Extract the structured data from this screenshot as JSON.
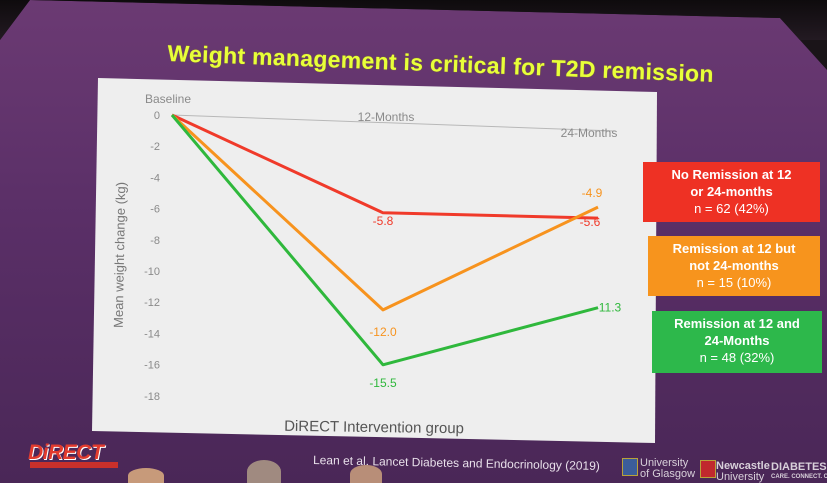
{
  "slide": {
    "title": "Weight management is critical  for T2D remission",
    "citation": "Lean et al. Lancet Diabetes and Endocrinology (2019)",
    "logos": {
      "direct": "DiRECT",
      "glasgow": [
        "University",
        "of Glasgow"
      ],
      "newcastle": [
        "Newcastle",
        "University"
      ],
      "diabetes": [
        "DIABETES",
        "CARE. CONNECT. CA"
      ]
    }
  },
  "chart_data": {
    "type": "line",
    "xlabel": "DiRECT Intervention group",
    "ylabel": "Mean weight change (kg)",
    "categories": [
      "Baseline",
      "12-Months",
      "24-Months"
    ],
    "ylim": [
      -18,
      0
    ],
    "yticks": [
      0,
      -2,
      -4,
      -6,
      -8,
      -10,
      -12,
      -14,
      -16,
      -18
    ],
    "ytick_labels": [
      "0",
      "-2",
      "-4",
      "-6",
      "-8",
      "-10",
      "-12",
      "-14",
      "-16",
      "-18"
    ],
    "grid": false,
    "legend_position": "right",
    "series": [
      {
        "name": "No Remission at 12 or 24-months",
        "count_label": "n = 62 (42%)",
        "color": "#f03a2a",
        "values": [
          0,
          -5.8,
          -5.6
        ],
        "labels": [
          "",
          "-5.8",
          "-5.6"
        ]
      },
      {
        "name": "Remission at 12 but not 24-months",
        "count_label": "n = 15 (10%)",
        "color": "#f7931e",
        "values": [
          0,
          -12.0,
          -4.9
        ],
        "labels": [
          "",
          "-12.0",
          "-4.9"
        ]
      },
      {
        "name": "Remission at 12 and 24-Months",
        "count_label": "n = 48 (32%)",
        "color": "#2fb83c",
        "values": [
          0,
          -15.5,
          -11.3
        ],
        "labels": [
          "",
          "-15.5",
          "-11.3"
        ]
      }
    ]
  }
}
